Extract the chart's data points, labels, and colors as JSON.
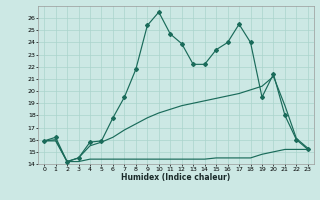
{
  "xlabel": "Humidex (Indice chaleur)",
  "ylabel": "",
  "bg_color": "#cce8e4",
  "line_color": "#1a6b5a",
  "grid_color": "#aad4cc",
  "xlim": [
    -0.5,
    23.5
  ],
  "ylim": [
    14,
    27
  ],
  "xticks": [
    0,
    1,
    2,
    3,
    4,
    5,
    6,
    7,
    8,
    9,
    10,
    11,
    12,
    13,
    14,
    15,
    16,
    17,
    18,
    19,
    20,
    21,
    22,
    23
  ],
  "yticks": [
    14,
    15,
    16,
    17,
    18,
    19,
    20,
    21,
    22,
    23,
    24,
    25,
    26
  ],
  "line1_x": [
    0,
    1,
    2,
    3,
    4,
    5,
    6,
    7,
    8,
    9,
    10,
    11,
    12,
    13,
    14,
    15,
    16,
    17,
    18,
    19,
    20,
    21,
    22,
    23
  ],
  "line1_y": [
    15.9,
    16.2,
    14.2,
    14.5,
    15.8,
    15.9,
    17.8,
    19.5,
    21.8,
    25.4,
    26.5,
    24.7,
    23.9,
    22.2,
    22.2,
    23.4,
    24.0,
    25.5,
    24.0,
    19.5,
    21.4,
    18.0,
    16.0,
    15.2
  ],
  "line2_x": [
    0,
    1,
    2,
    3,
    4,
    5,
    6,
    7,
    8,
    9,
    10,
    11,
    12,
    13,
    14,
    15,
    16,
    17,
    18,
    19,
    20,
    21,
    22,
    23
  ],
  "line2_y": [
    15.9,
    15.9,
    14.2,
    14.2,
    14.4,
    14.4,
    14.4,
    14.4,
    14.4,
    14.4,
    14.4,
    14.4,
    14.4,
    14.4,
    14.4,
    14.5,
    14.5,
    14.5,
    14.5,
    14.8,
    15.0,
    15.2,
    15.2,
    15.2
  ],
  "line3_x": [
    0,
    1,
    2,
    3,
    4,
    5,
    6,
    7,
    8,
    9,
    10,
    11,
    12,
    13,
    14,
    15,
    16,
    17,
    18,
    19,
    20,
    21,
    22,
    23
  ],
  "line3_y": [
    15.9,
    16.0,
    14.2,
    14.5,
    15.5,
    15.8,
    16.2,
    16.8,
    17.3,
    17.8,
    18.2,
    18.5,
    18.8,
    19.0,
    19.2,
    19.4,
    19.6,
    19.8,
    20.1,
    20.4,
    21.2,
    18.8,
    16.1,
    15.3
  ]
}
